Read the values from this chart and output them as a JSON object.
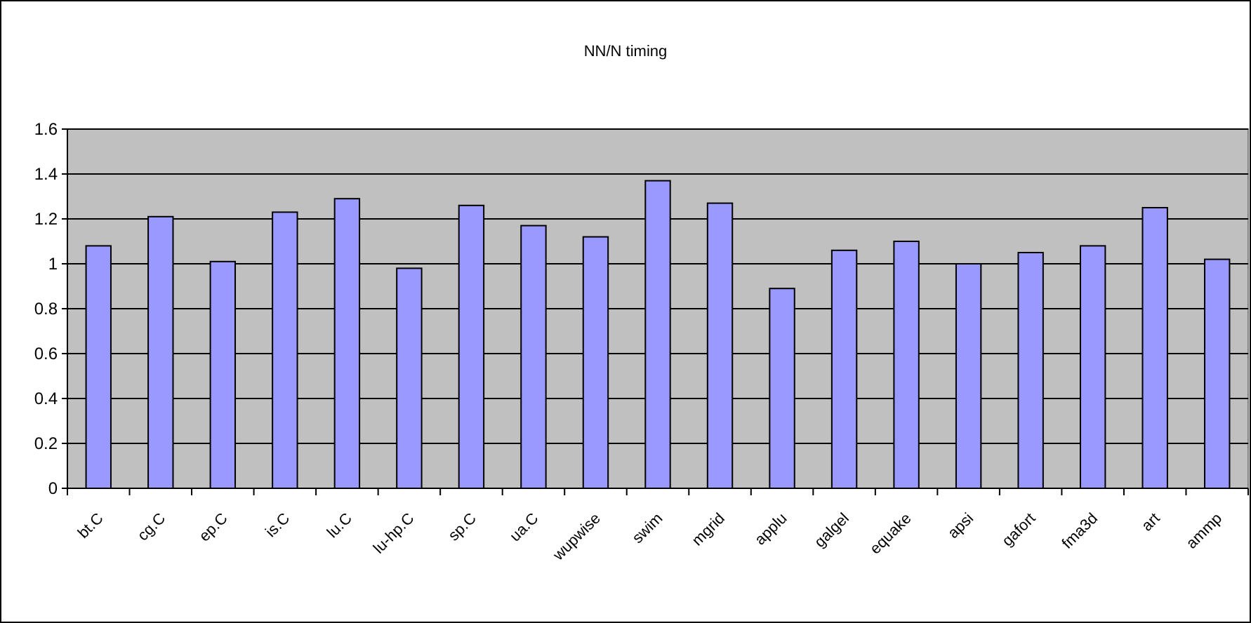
{
  "chart_data": {
    "type": "bar",
    "title": "NN/N timing",
    "categories": [
      "bt.C",
      "cg.C",
      "ep.C",
      "is.C",
      "lu.C",
      "lu-hp.C",
      "sp.C",
      "ua.C",
      "wupwise",
      "swim",
      "mgrid",
      "applu",
      "galgel",
      "equake",
      "apsi",
      "gafort",
      "fma3d",
      "art",
      "ammp"
    ],
    "values": [
      1.08,
      1.21,
      1.01,
      1.23,
      1.29,
      0.98,
      1.26,
      1.17,
      1.12,
      1.37,
      1.27,
      0.89,
      1.06,
      1.1,
      1.0,
      1.05,
      1.08,
      1.25,
      1.02
    ],
    "color": "#9999ff",
    "ylim": [
      0,
      1.6
    ],
    "yticks": [
      0,
      0.2,
      0.4,
      0.6,
      0.8,
      1,
      1.2,
      1.4,
      1.6
    ],
    "grid": "y"
  }
}
